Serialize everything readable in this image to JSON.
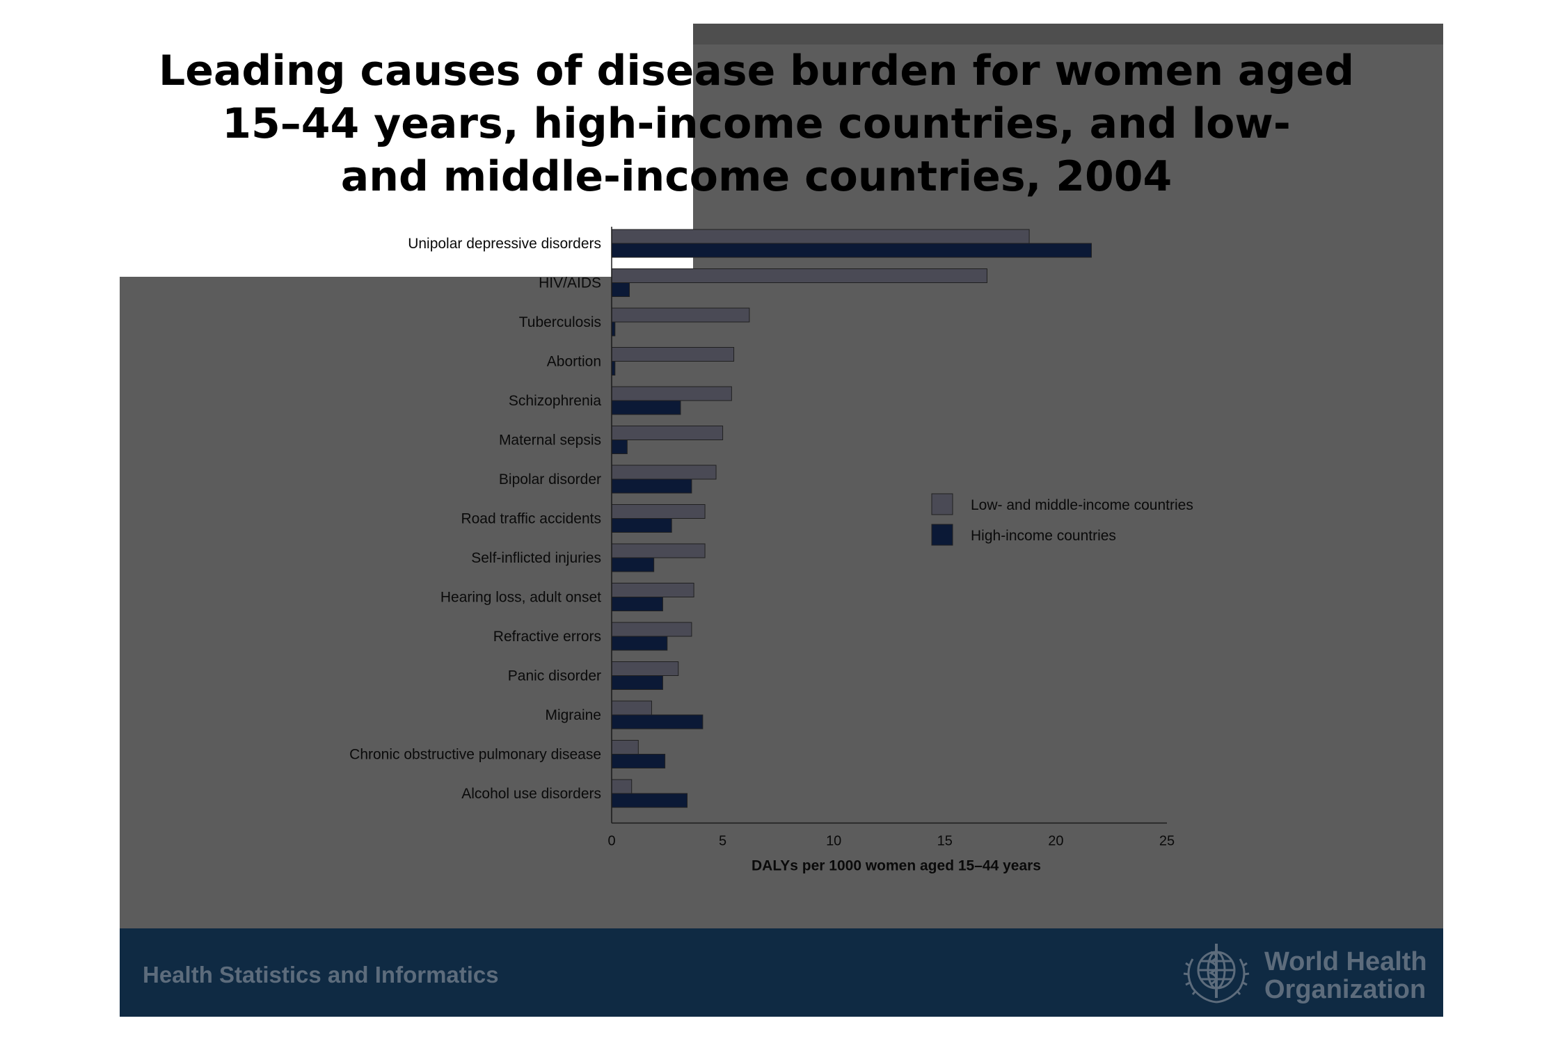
{
  "slide": {
    "title": "Leading causes of disease burden for women aged\n15–44 years, high-income countries, and low-\nand middle-income countries, 2004",
    "footer_text": "Health Statistics and Informatics",
    "org_name": "World Health\nOrganization",
    "colors": {
      "slide_bg": "#5c5c5c",
      "footer_bg": "#0f2a43",
      "footer_text": "#5d6c7c"
    },
    "icons": [
      "who-emblem-icon"
    ]
  },
  "chart_data": {
    "type": "bar",
    "orientation": "horizontal",
    "title": "",
    "xlabel": "DALYs per 1000 women aged 15–44 years",
    "ylabel": "",
    "xlim": [
      0,
      25
    ],
    "xticks": [
      0,
      5,
      10,
      15,
      20,
      25
    ],
    "grid": false,
    "legend_position": "right",
    "categories": [
      "Unipolar depressive disorders",
      "HIV/AIDS",
      "Tuberculosis",
      "Abortion",
      "Schizophrenia",
      "Maternal sepsis",
      "Bipolar disorder",
      "Road traffic accidents",
      "Self-inflicted injuries",
      "Hearing loss, adult onset",
      "Refractive errors",
      "Panic disorder",
      "Migraine",
      "Chronic obstructive pulmonary disease",
      "Alcohol use disorders"
    ],
    "series": [
      {
        "name": "Low- and middle-income countries",
        "color": "#4a4a55",
        "values": [
          18.8,
          16.9,
          6.2,
          5.5,
          5.4,
          5.0,
          4.7,
          4.2,
          4.2,
          3.7,
          3.6,
          3.0,
          1.8,
          1.2,
          0.9
        ]
      },
      {
        "name": "High-income countries",
        "color": "#0b1936",
        "values": [
          21.6,
          0.8,
          0.15,
          0.15,
          3.1,
          0.7,
          3.6,
          2.7,
          1.9,
          2.3,
          2.5,
          2.3,
          4.1,
          2.4,
          3.4
        ]
      }
    ]
  }
}
